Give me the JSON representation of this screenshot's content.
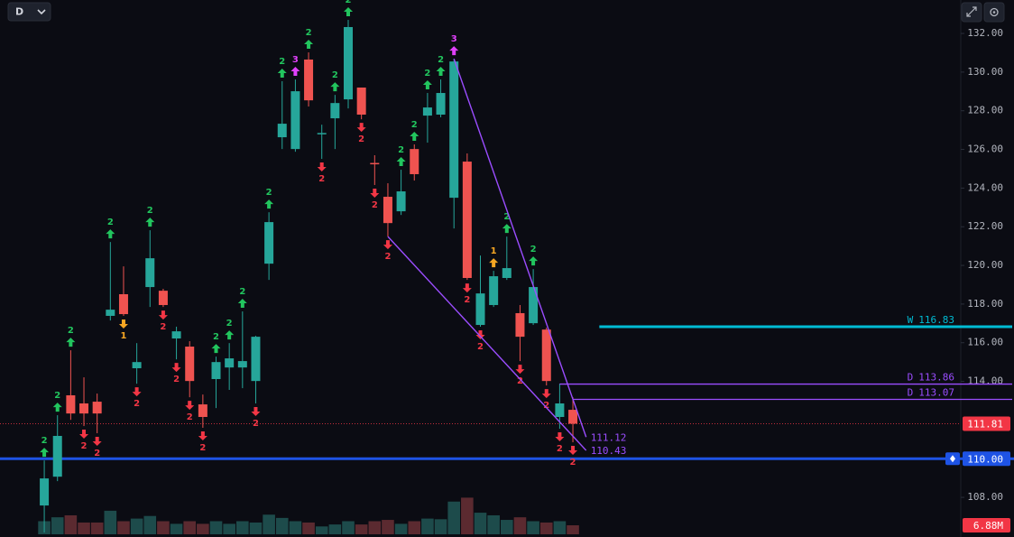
{
  "toolbar": {
    "timeframe": "D"
  },
  "chart_data": {
    "type": "candlestick",
    "up_color": "#26a69a",
    "down_color": "#ef5350",
    "up_volume_color": "#1d4b4b",
    "down_volume_color": "#5b2a30",
    "open": [
      107.58,
      109.07,
      113.28,
      112.86,
      112.95,
      117.39,
      118.51,
      114.68,
      118.88,
      118.69,
      116.22,
      115.8,
      112.81,
      114.12,
      114.72,
      114.72,
      114.02,
      120.09,
      126.63,
      126.02,
      130.65,
      126.8,
      127.61,
      128.59,
      129.2,
      125.3,
      123.55,
      122.8,
      126.02,
      127.75,
      127.8,
      123.5,
      125.37,
      116.92,
      117.95,
      119.35,
      117.53,
      117.01,
      116.68,
      112.16,
      112.53
    ],
    "high": [
      109.91,
      112.25,
      115.61,
      114.21,
      113.37,
      121.21,
      119.95,
      115.98,
      121.82,
      118.79,
      116.83,
      116.08,
      113.32,
      115.28,
      115.98,
      117.62,
      116.36,
      122.75,
      129.53,
      129.62,
      131.02,
      127.28,
      128.82,
      132.7,
      129.2,
      125.7,
      124.25,
      124.95,
      126.26,
      128.92,
      129.62,
      130.69,
      125.79,
      120.51,
      119.72,
      121.49,
      117.95,
      119.81,
      116.78,
      113.88,
      113.18
    ],
    "low": [
      106.18,
      108.84,
      112.01,
      111.69,
      111.32,
      117.15,
      117.39,
      113.88,
      117.85,
      117.85,
      115.14,
      113.18,
      111.6,
      112.62,
      113.56,
      113.65,
      112.86,
      119.25,
      126.02,
      125.88,
      128.22,
      125.51,
      126.02,
      128.12,
      127.56,
      124.16,
      121.49,
      122.61,
      124.39,
      126.35,
      127.66,
      121.91,
      119.25,
      116.83,
      117.85,
      119.25,
      115.05,
      116.92,
      113.79,
      111.55,
      110.85
    ],
    "close": [
      108.98,
      111.18,
      112.34,
      112.34,
      112.34,
      117.71,
      117.48,
      115.0,
      120.37,
      117.95,
      116.59,
      114.02,
      112.16,
      115.0,
      115.19,
      115.05,
      116.31,
      122.24,
      127.33,
      129.01,
      128.54,
      126.85,
      128.4,
      132.33,
      127.8,
      125.25,
      122.19,
      123.83,
      124.72,
      128.17,
      128.92,
      130.55,
      119.35,
      118.55,
      119.44,
      119.86,
      116.31,
      118.88,
      114.02,
      112.86,
      111.81
    ],
    "volume": [
      10,
      13,
      14.5,
      9,
      9,
      18,
      10,
      12,
      14,
      10,
      8,
      10,
      8,
      10,
      8,
      10,
      9,
      15,
      12.5,
      10,
      9,
      6,
      7.5,
      10,
      7.5,
      10,
      11,
      8,
      10,
      12,
      11.5,
      25,
      28,
      16.5,
      14.5,
      11,
      13,
      10,
      9,
      10,
      6.88
    ],
    "volume_last_label": "6.88M",
    "volume_lim": [
      0,
      40
    ],
    "signal_labels": [
      "2",
      "2",
      "2",
      "2",
      "2",
      "2",
      "1",
      "2",
      "2",
      "2",
      "2",
      "2",
      "2",
      "2",
      "2",
      "2",
      "2",
      "2",
      "2",
      "3",
      "2",
      "2",
      "2",
      "2",
      "2",
      "2",
      "2",
      "2",
      "2",
      "2",
      "2",
      "3",
      "2",
      "2",
      "1",
      "2",
      "2",
      "2",
      "2",
      "2",
      "2"
    ],
    "signal_dirs": [
      "up",
      "up",
      "up",
      "down",
      "down",
      "up",
      "down",
      "down",
      "up",
      "down",
      "down",
      "down",
      "down",
      "up",
      "up",
      "up",
      "down",
      "up",
      "up",
      "up",
      "up",
      "down",
      "up",
      "up",
      "down",
      "down",
      "down",
      "up",
      "up",
      "up",
      "up",
      "up",
      "down",
      "down",
      "up",
      "up",
      "down",
      "up",
      "down",
      "down",
      "down"
    ],
    "signal_palette": {
      "up": "#22c55e",
      "down": "#f23645",
      "3": "#e040fb",
      "1": "#f5a623"
    },
    "xlim": [
      -3.35,
      69.35
    ],
    "ylim": [
      105.95,
      133.73
    ],
    "yticks": [
      {
        "value": 108,
        "label": "108.00"
      },
      {
        "value": 114,
        "label": "114.00"
      },
      {
        "value": 116,
        "label": "116.00"
      },
      {
        "value": 118,
        "label": "118.00"
      },
      {
        "value": 120,
        "label": "120.00"
      },
      {
        "value": 122,
        "label": "122.00"
      },
      {
        "value": 124,
        "label": "124.00"
      },
      {
        "value": 126,
        "label": "126.00"
      },
      {
        "value": 128,
        "label": "128.00"
      },
      {
        "value": 130,
        "label": "130.00"
      },
      {
        "value": 132,
        "label": "132.00"
      }
    ],
    "grid": false,
    "price_lines": [
      {
        "label": "W",
        "value": 116.83,
        "start_index": 42,
        "color": "#00bcd4",
        "width": 3
      },
      {
        "label": "D",
        "value": 113.86,
        "start_index": 39,
        "color": "#9b4dff",
        "width": 1.3
      },
      {
        "label": "D",
        "value": 113.07,
        "start_index": 40,
        "color": "#9b4dff",
        "width": 1.3
      }
    ],
    "trendlines": [
      {
        "start_index": 26,
        "start_value": 121.49,
        "end_index": 41,
        "end_value": 110.43,
        "color": "#9b4dff"
      },
      {
        "start_index": 31,
        "start_value": 130.69,
        "end_index": 41,
        "end_value": 111.12,
        "color": "#9b4dff"
      }
    ],
    "horizontal_line": {
      "value": 110,
      "label": "110.00",
      "color": "#1e53e5"
    },
    "current_price_color": "#f23645"
  }
}
